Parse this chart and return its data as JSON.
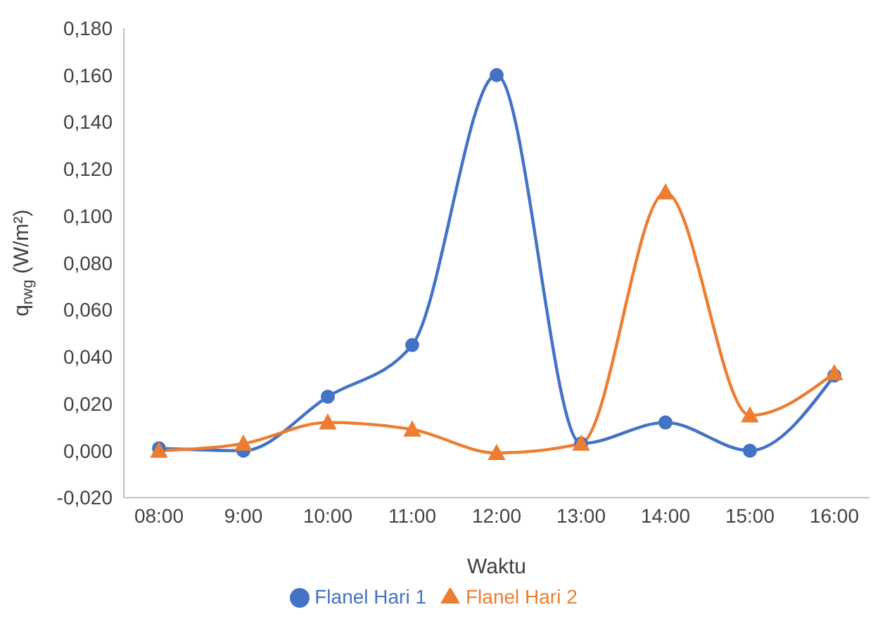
{
  "chart_data": {
    "type": "line",
    "xlabel": "Waktu",
    "ylabel": "q$_{rwg}$ (W/m²)",
    "categories": [
      "08:00",
      "9:00",
      "10:00",
      "11:00",
      "12:00",
      "13:00",
      "14:00",
      "15:00",
      "16:00"
    ],
    "series": [
      {
        "name": "Flanel Hari 1",
        "color": "#4472c4",
        "marker": "circle",
        "values": [
          0.001,
          0.0,
          0.023,
          0.045,
          0.16,
          0.003,
          0.012,
          0.0,
          0.032
        ]
      },
      {
        "name": "Flanel Hari 2",
        "color": "#ed7d31",
        "marker": "triangle",
        "values": [
          0.0,
          0.003,
          0.012,
          0.009,
          -0.001,
          0.003,
          0.11,
          0.015,
          0.033
        ]
      }
    ],
    "ylim": [
      -0.02,
      0.18
    ],
    "yticks": [
      {
        "value": -0.02,
        "label": "-0,020"
      },
      {
        "value": 0,
        "label": "0,000"
      },
      {
        "value": 0.02,
        "label": "0,020"
      },
      {
        "value": 0.04,
        "label": "0,040"
      },
      {
        "value": 0.06,
        "label": "0,060"
      },
      {
        "value": 0.08,
        "label": "0,080"
      },
      {
        "value": 0.1,
        "label": "0,100"
      },
      {
        "value": 0.12,
        "label": "0,120"
      },
      {
        "value": 0.14,
        "label": "0,140"
      },
      {
        "value": 0.16,
        "label": "0,160"
      },
      {
        "value": 0.18,
        "label": "0,180"
      }
    ],
    "grid": false,
    "legend": "bottom",
    "line_style": "solid"
  }
}
